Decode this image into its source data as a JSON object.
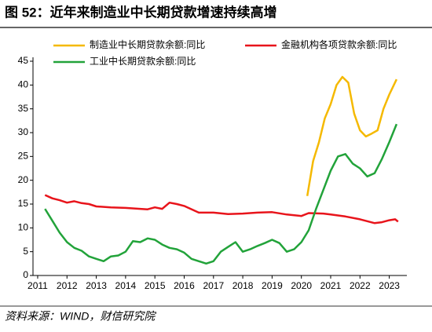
{
  "chart_data": {
    "type": "line",
    "title": "图 52：近年来制造业中长期贷款增速持续高增",
    "source": "资料来源：WIND，财信研究院",
    "xlim": [
      2010.84,
      2023.6
    ],
    "xticks": [
      2011,
      2012,
      2013,
      2014,
      2015,
      2016,
      2017,
      2018,
      2019,
      2020,
      2021,
      2022,
      2023
    ],
    "ylim": [
      0,
      45
    ],
    "yticks": [
      0,
      5,
      10,
      15,
      20,
      25,
      30,
      35,
      40,
      45
    ],
    "grid": false,
    "series": [
      {
        "name": "制造业中长期贷款余额:同比",
        "color": "#f5b900",
        "x": [
          2020.2,
          2020.4,
          2020.6,
          2020.8,
          2021,
          2021.2,
          2021.4,
          2021.6,
          2021.8,
          2022,
          2022.2,
          2022.4,
          2022.6,
          2022.8,
          2023,
          2023.25
        ],
        "values": [
          16.7,
          24,
          28,
          33,
          36,
          40,
          41.7,
          40.5,
          34,
          30.5,
          29.2,
          29.8,
          30.5,
          35,
          38,
          41.2
        ]
      },
      {
        "name": "金融机构各项贷款余额:同比",
        "color": "#e8141b",
        "x": [
          2011.25,
          2011.5,
          2011.75,
          2012,
          2012.25,
          2012.5,
          2012.75,
          2013,
          2013.5,
          2014,
          2014.5,
          2014.75,
          2015,
          2015.25,
          2015.5,
          2015.75,
          2016,
          2016.5,
          2017,
          2017.5,
          2018,
          2018.5,
          2019,
          2019.5,
          2020,
          2020.25,
          2020.75,
          2021,
          2021.5,
          2022,
          2022.5,
          2022.75,
          2023,
          2023.2,
          2023.3
        ],
        "values": [
          16.9,
          16.2,
          15.8,
          15.3,
          15.6,
          15.2,
          15.0,
          14.5,
          14.3,
          14.2,
          14.0,
          13.9,
          14.3,
          14.0,
          15.3,
          15.0,
          14.6,
          13.2,
          13.2,
          12.9,
          13.0,
          13.2,
          13.3,
          12.8,
          12.5,
          13.1,
          13.0,
          12.8,
          12.4,
          11.8,
          11.0,
          11.2,
          11.6,
          11.8,
          11.3
        ]
      },
      {
        "name": "工业中长期贷款余额:同比",
        "color": "#22a33a",
        "x": [
          2011.25,
          2011.5,
          2011.75,
          2012,
          2012.25,
          2012.5,
          2012.75,
          2013,
          2013.25,
          2013.5,
          2013.75,
          2014,
          2014.25,
          2014.5,
          2014.75,
          2015,
          2015.25,
          2015.5,
          2015.75,
          2016,
          2016.25,
          2016.5,
          2016.75,
          2017,
          2017.25,
          2017.5,
          2017.75,
          2018,
          2018.25,
          2018.5,
          2018.75,
          2019,
          2019.25,
          2019.5,
          2019.75,
          2020,
          2020.25,
          2020.5,
          2020.75,
          2021,
          2021.25,
          2021.5,
          2021.75,
          2022,
          2022.25,
          2022.5,
          2022.75,
          2023,
          2023.25
        ],
        "values": [
          14,
          11.5,
          9,
          7,
          5.8,
          5.2,
          4.0,
          3.5,
          3.0,
          4.0,
          4.2,
          5.0,
          7.2,
          7.0,
          7.8,
          7.5,
          6.5,
          5.8,
          5.5,
          4.8,
          3.5,
          3.0,
          2.5,
          3.0,
          5.0,
          6.0,
          7.0,
          5.0,
          5.5,
          6.2,
          6.8,
          7.5,
          6.8,
          5.0,
          5.5,
          7.0,
          9.5,
          14,
          18,
          22,
          25.0,
          25.5,
          23.5,
          22.5,
          20.8,
          21.5,
          24.5,
          28,
          31.8
        ]
      }
    ]
  }
}
